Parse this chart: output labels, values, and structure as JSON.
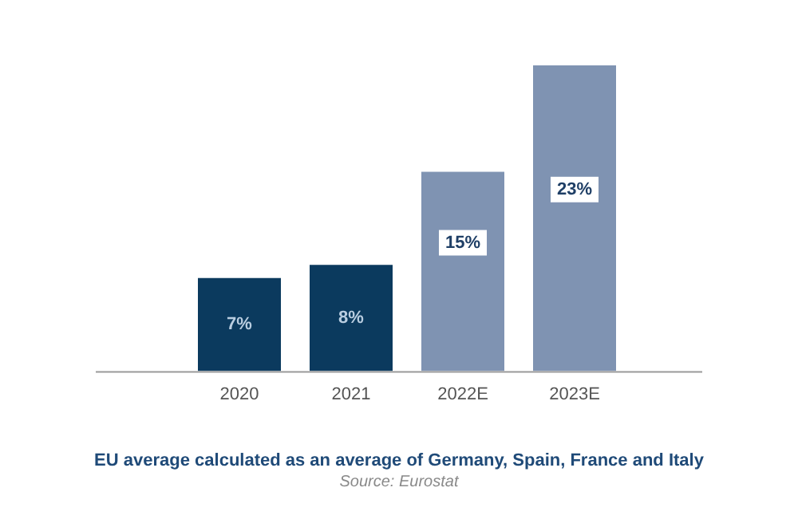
{
  "chart_data": {
    "type": "bar",
    "title": "EU average calculated as an average of Germany, Spain, France and Italy",
    "categories": [
      "2020",
      "2021",
      "2022E",
      "2023E"
    ],
    "values": [
      7,
      8,
      15,
      23
    ],
    "colors": [
      "#0b3a5e",
      "#0b3a5e",
      "#7f93b2",
      "#7f93b2"
    ],
    "value_labels": [
      "7%",
      "8%",
      "15%",
      "23%"
    ],
    "annotations": [
      "Source: Eurostat"
    ],
    "grid": false,
    "legend": false
  }
}
